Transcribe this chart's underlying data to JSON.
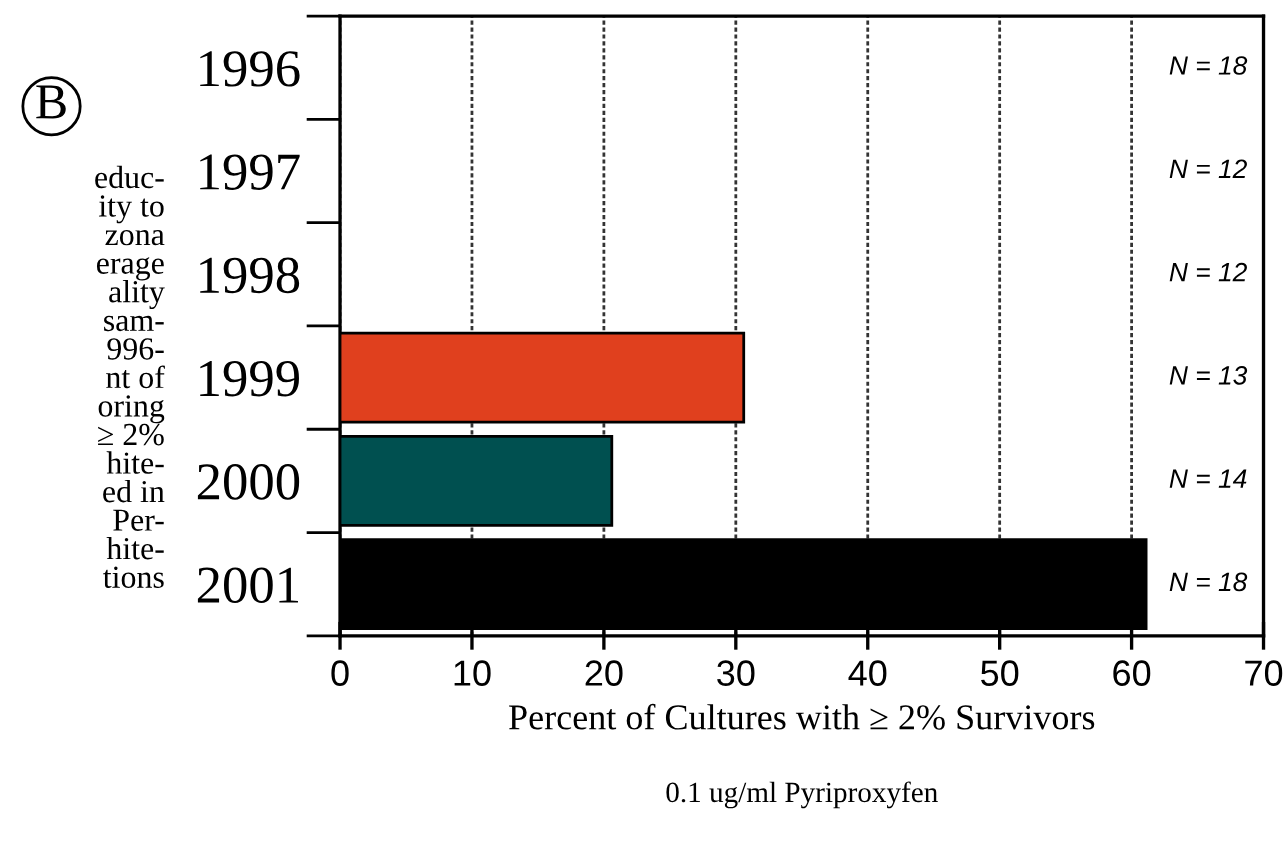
{
  "chart_data": {
    "type": "bar",
    "orientation": "horizontal",
    "categories": [
      "1996",
      "1997",
      "1998",
      "1999",
      "2000",
      "2001"
    ],
    "values": [
      0,
      0,
      0,
      30.6,
      20.6,
      61.1
    ],
    "colors": [
      "#e0401e",
      "#e0401e",
      "#e0401e",
      "#e0401e",
      "#005050",
      "#000000"
    ],
    "xlabel": "Percent of Cultures with ≥ 2% Survivors",
    "subtitle": "0.1 ug/ml Pyriproxyfen",
    "xlim": [
      0,
      70
    ],
    "xticks": [
      0,
      10,
      20,
      30,
      40,
      50,
      60,
      70
    ],
    "grid": "x",
    "annotations": [
      "B",
      "educ-\nity to\nzona\nerage\nality\nsam-\n996-\nnt of\noring\n≥ 2%\nhite-\ned in\nPer-\nhite-\ntions",
      "N = 18",
      "N = 12",
      "N = 12",
      "N = 13",
      "N = 14",
      "N = 18"
    ]
  }
}
